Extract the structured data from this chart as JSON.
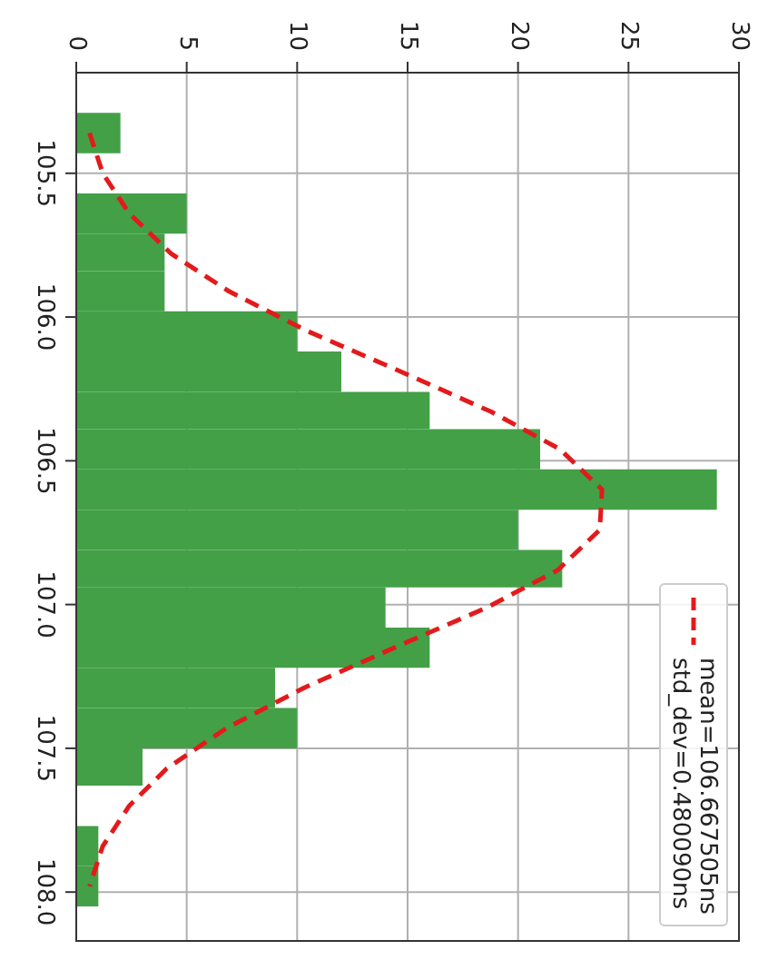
{
  "chart_data": {
    "type": "histogram",
    "orientation": "horizontal",
    "bins": [
      105.29,
      105.43,
      105.57,
      105.71,
      105.84,
      105.98,
      106.12,
      106.26,
      106.39,
      106.53,
      106.67,
      106.81,
      106.94,
      107.08,
      107.22,
      107.36,
      107.5,
      107.63,
      107.77,
      107.91,
      108.05
    ],
    "values": [
      2,
      0,
      5,
      4,
      4,
      10,
      12,
      16,
      21,
      29,
      20,
      22,
      14,
      16,
      9,
      10,
      3,
      0,
      1,
      1
    ],
    "color": "#43a047",
    "series": [
      {
        "type": "line",
        "name": "mean=106.667505ns\nstd_dev=0.480090ns",
        "color": "#e31a1c",
        "line_style": "dashed",
        "marker": "none",
        "x": [
          105.36,
          105.5,
          105.64,
          105.78,
          105.91,
          106.05,
          106.19,
          106.33,
          106.46,
          106.6,
          106.74,
          106.88,
          107.01,
          107.15,
          107.29,
          107.43,
          107.57,
          107.7,
          107.84,
          107.98
        ],
        "values": [
          0.6,
          1.2,
          2.4,
          4.3,
          6.9,
          10.5,
          14.7,
          18.8,
          21.9,
          23.8,
          23.7,
          21.8,
          18.6,
          14.4,
          10.3,
          6.8,
          4.1,
          2.4,
          1.2,
          0.6
        ]
      }
    ],
    "xlim": [
      0,
      30
    ],
    "xticks": [
      0,
      5,
      10,
      15,
      20,
      25,
      30
    ],
    "ylim": [
      108.17,
      105.15
    ],
    "yticks": [
      105.5,
      {
        "value": 106,
        "label": "106.0"
      },
      106.5,
      {
        "value": 107,
        "label": "107.0"
      },
      107.5,
      {
        "value": 108,
        "label": "108.0"
      }
    ],
    "grid": true,
    "legend": "bottom right"
  }
}
